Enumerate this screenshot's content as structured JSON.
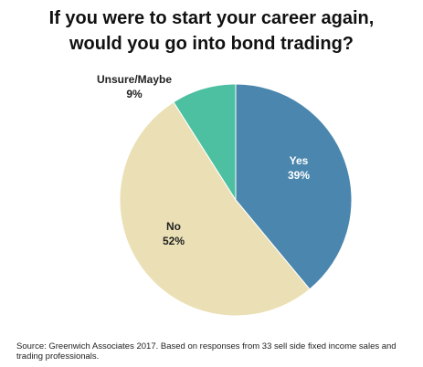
{
  "chart_data": {
    "type": "pie",
    "title_lines": [
      "If you were to start your career again,",
      "would you go into bond trading?"
    ],
    "slices": [
      {
        "label": "Yes",
        "value": 39,
        "display": "39%",
        "color": "#4a86ad",
        "label_color": "#ffffff"
      },
      {
        "label": "No",
        "value": 52,
        "display": "52%",
        "color": "#ebe0b5",
        "label_color": "#222222"
      },
      {
        "label": "Unsure/Maybe",
        "value": 9,
        "display": "9%",
        "color": "#4cc0a0",
        "label_color": "#222222"
      }
    ]
  },
  "source": "Source: Greenwich Associates 2017. Based on responses from 33 sell side fixed income sales and trading professionals."
}
